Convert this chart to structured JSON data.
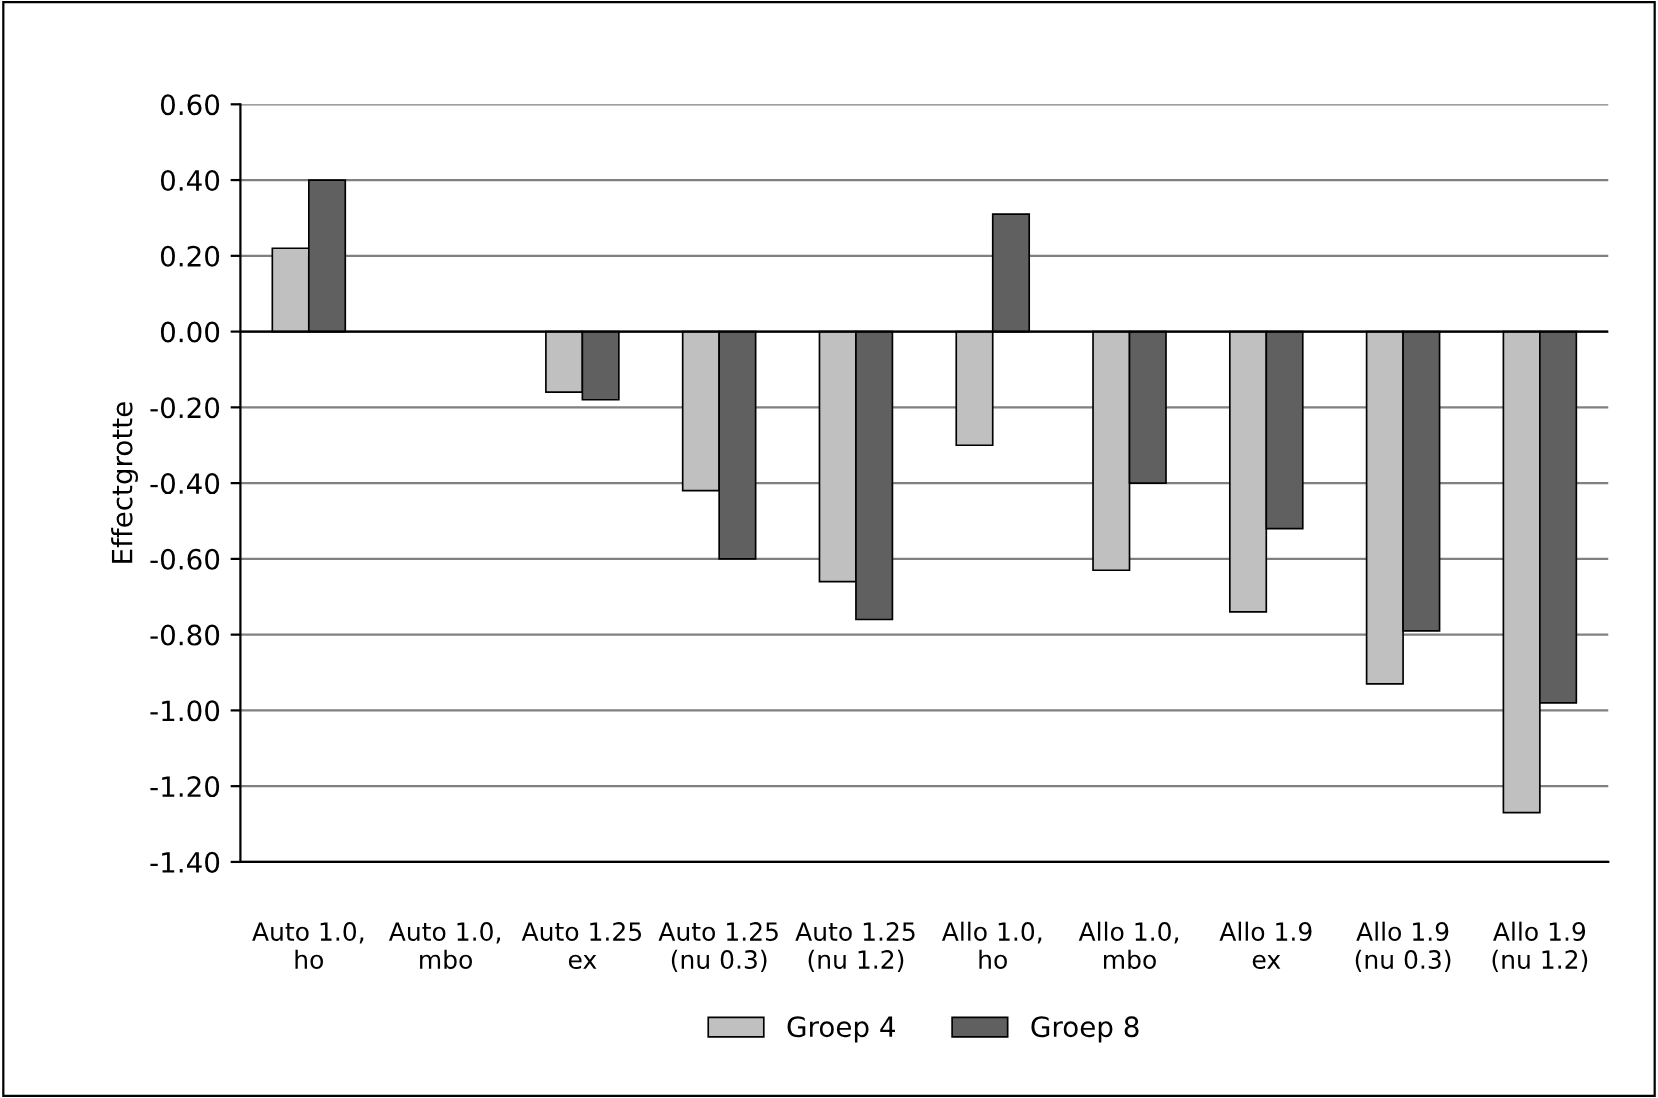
{
  "chart_data": {
    "type": "bar",
    "ylabel": "Effectgrotte",
    "categories": [
      "Auto 1.0,\nho",
      "Auto 1.0,\nmbo",
      "Auto 1.25\nex",
      "Auto 1.25\n(nu 0.3)",
      "Auto 1.25\n(nu 1.2)",
      "Allo 1.0,\nho",
      "Allo 1.0,\nmbo",
      "Allo 1.9\nex",
      "Allo 1.9\n(nu 0.3)",
      "Allo 1.9\n(nu 1.2)"
    ],
    "series": [
      {
        "name": "Groep 4",
        "color": "#c0c0c0",
        "values": [
          0.22,
          null,
          -0.16,
          -0.42,
          -0.66,
          -0.3,
          -0.63,
          -0.74,
          -0.93,
          -1.27
        ]
      },
      {
        "name": "Groep 8",
        "color": "#606060",
        "values": [
          0.4,
          null,
          -0.18,
          -0.6,
          -0.76,
          0.31,
          -0.4,
          -0.52,
          -0.79,
          -0.98
        ]
      }
    ],
    "ylim": [
      -1.4,
      0.6
    ],
    "yticks": [
      {
        "value": -1.4,
        "label": "-1.40"
      },
      {
        "value": -1.2,
        "label": "-1.20"
      },
      {
        "value": -1.0,
        "label": "-1.00"
      },
      {
        "value": -0.8,
        "label": "-0.80"
      },
      {
        "value": -0.6,
        "label": "-0.60"
      },
      {
        "value": -0.4,
        "label": "-0.40"
      },
      {
        "value": -0.2,
        "label": "-0.20"
      },
      {
        "value": 0,
        "label": "0.00"
      },
      {
        "value": 0.2,
        "label": "0.20"
      },
      {
        "value": 0.4,
        "label": "0.40"
      },
      {
        "value": 0.6,
        "label": "0.60"
      }
    ],
    "grid": "y",
    "legend": "bottom"
  }
}
